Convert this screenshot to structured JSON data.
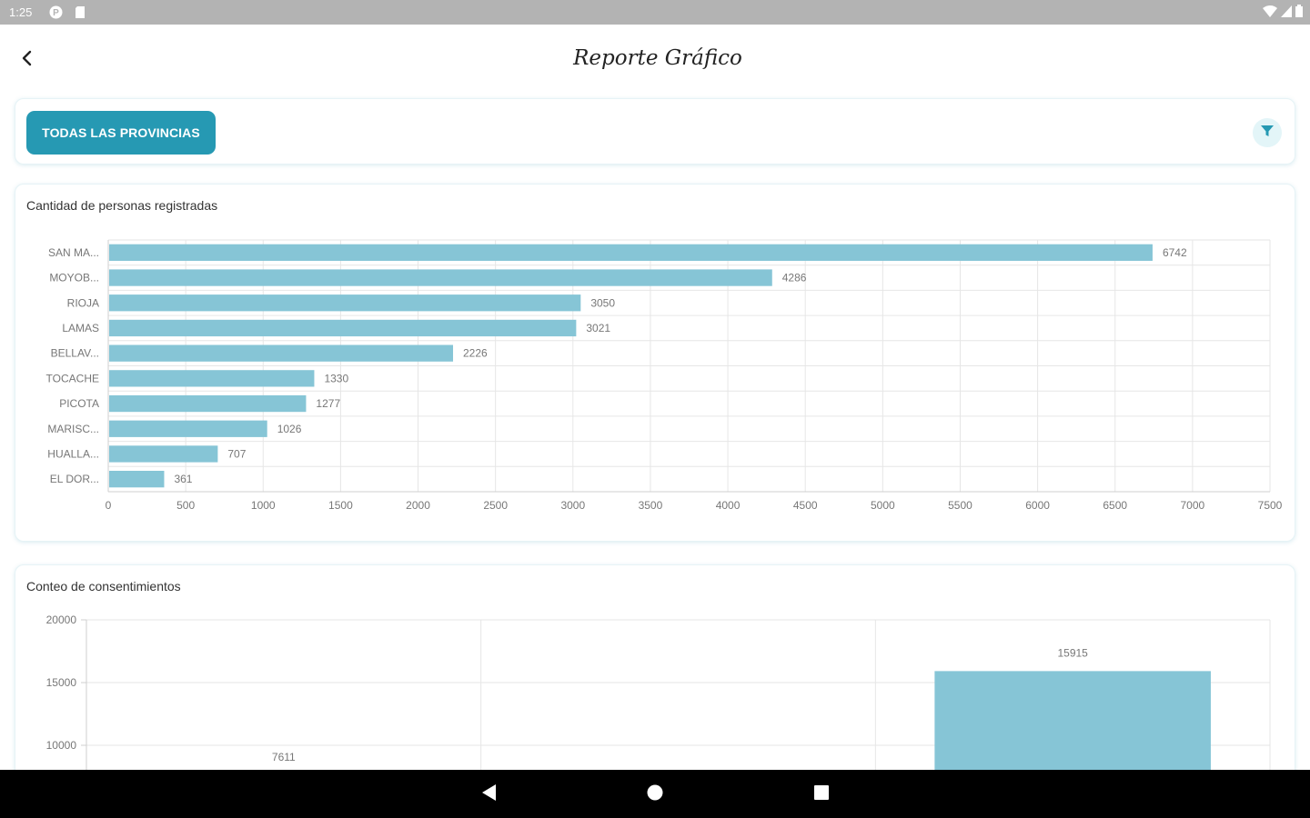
{
  "status_bar": {
    "time": "1:25",
    "left_icons": [
      "p-badge-icon",
      "sim-card-icon"
    ],
    "right_icons": [
      "wifi-icon",
      "cell-signal-icon",
      "battery-icon"
    ]
  },
  "app_bar": {
    "title": "Reporte Gráfico",
    "back_icon": "chevron-left-icon"
  },
  "filter": {
    "province_button_label": "TODAS LAS PROVINCIAS",
    "filter_icon": "funnel-icon"
  },
  "colors": {
    "accent": "#2699b3",
    "bar": "#86c5d6",
    "grid": "#e6e6e6",
    "axis_text": "#777777"
  },
  "chart_data": [
    {
      "type": "bar",
      "orientation": "horizontal",
      "title": "Cantidad de personas registradas",
      "categories": [
        "SAN MA...",
        "MOYOB...",
        "RIOJA",
        "LAMAS",
        "BELLAV...",
        "TOCACHE",
        "PICOTA",
        "MARISC...",
        "HUALLA...",
        "EL DOR..."
      ],
      "values": [
        6742,
        4286,
        3050,
        3021,
        2226,
        1330,
        1277,
        1026,
        707,
        361
      ],
      "xlim": [
        0,
        7500
      ],
      "x_ticks": [
        0,
        500,
        1000,
        1500,
        2000,
        2500,
        3000,
        3500,
        4000,
        4500,
        5000,
        5500,
        6000,
        6500,
        7000,
        7500
      ],
      "grid": true,
      "data_labels": true
    },
    {
      "type": "bar",
      "orientation": "vertical",
      "title": "Conteo de consentimientos",
      "categories": [
        "",
        "",
        ""
      ],
      "values": [
        7611,
        null,
        15915
      ],
      "ylim": [
        0,
        20000
      ],
      "y_ticks_visible": [
        10000,
        15000,
        20000
      ],
      "grid": true,
      "data_labels": true
    }
  ],
  "nav_bar": {
    "icons": [
      "back-triangle-icon",
      "home-circle-icon",
      "recents-square-icon"
    ]
  }
}
